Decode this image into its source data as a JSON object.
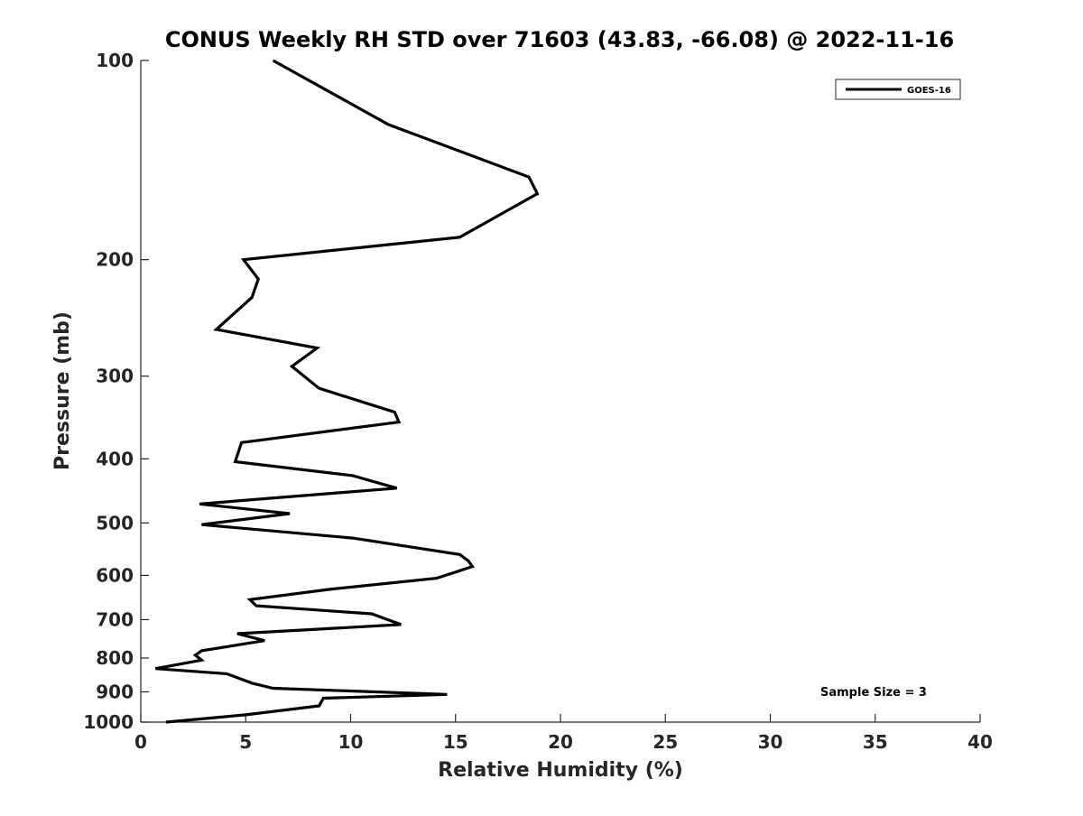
{
  "chart_data": {
    "type": "line",
    "title": "CONUS Weekly RH STD over 71603 (43.83, -66.08) @ 2022-11-16",
    "xlabel": "Relative Humidity (%)",
    "ylabel": "Pressure (mb)",
    "xlim": [
      0,
      40
    ],
    "ylim": [
      100,
      1000
    ],
    "y_scale": "log",
    "y_reversed": true,
    "xticks": [
      0,
      5,
      10,
      15,
      20,
      25,
      30,
      35,
      40
    ],
    "yticks": [
      100,
      200,
      300,
      400,
      500,
      600,
      700,
      800,
      900,
      1000
    ],
    "grid": false,
    "legend_position": "top-right",
    "annotation": "Sample Size = 3",
    "series": [
      {
        "name": "GOES-16",
        "color": "#000000",
        "points": [
          [
            6.3,
            100
          ],
          [
            11.8,
            125
          ],
          [
            18.5,
            150
          ],
          [
            18.9,
            159
          ],
          [
            15.2,
            185
          ],
          [
            4.9,
            200
          ],
          [
            5.6,
            214
          ],
          [
            5.3,
            228
          ],
          [
            3.6,
            255
          ],
          [
            8.4,
            272
          ],
          [
            7.2,
            290
          ],
          [
            8.5,
            313
          ],
          [
            12.1,
            340
          ],
          [
            12.3,
            352
          ],
          [
            4.8,
            378
          ],
          [
            4.5,
            404
          ],
          [
            10.1,
            424
          ],
          [
            12.2,
            443
          ],
          [
            2.8,
            468
          ],
          [
            7.1,
            484
          ],
          [
            2.9,
            503
          ],
          [
            10.1,
            527
          ],
          [
            15.2,
            558
          ],
          [
            15.6,
            570
          ],
          [
            15.8,
            582
          ],
          [
            14.1,
            606
          ],
          [
            9.0,
            630
          ],
          [
            5.2,
            653
          ],
          [
            5.5,
            667
          ],
          [
            11.0,
            686
          ],
          [
            12.4,
            712
          ],
          [
            4.6,
            735
          ],
          [
            5.9,
            753
          ],
          [
            2.9,
            780
          ],
          [
            2.6,
            792
          ],
          [
            2.9,
            806
          ],
          [
            0.7,
            830
          ],
          [
            4.1,
            845
          ],
          [
            5.3,
            873
          ],
          [
            6.3,
            889
          ],
          [
            14.6,
            908
          ],
          [
            8.7,
            920
          ],
          [
            8.5,
            945
          ],
          [
            5.0,
            975
          ],
          [
            1.2,
            1000
          ]
        ]
      }
    ]
  }
}
